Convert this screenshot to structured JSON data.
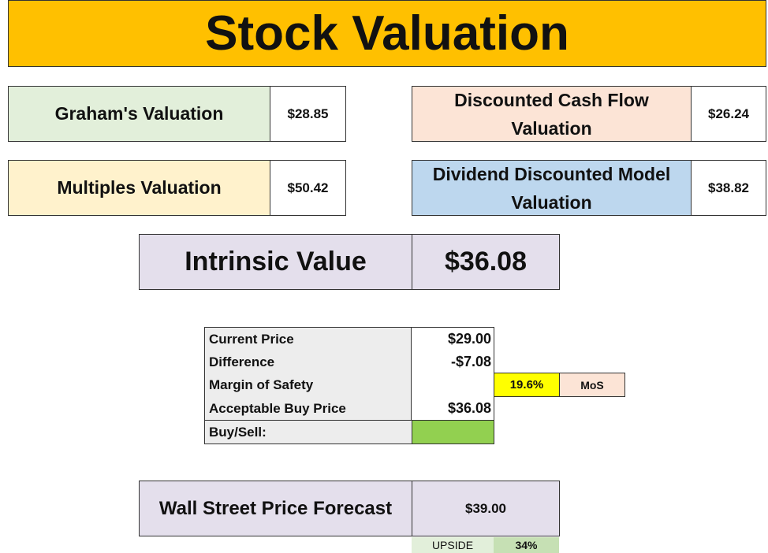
{
  "header": {
    "title": "Stock Valuation"
  },
  "valuations": [
    {
      "label": "Graham's Valuation",
      "value": "$28.85"
    },
    {
      "label": "Discounted Cash Flow Valuation",
      "value": "$26.24"
    },
    {
      "label": "Multiples Valuation",
      "value": "$50.42"
    },
    {
      "label": "Dividend Discounted Model Valuation",
      "value": "$38.82"
    }
  ],
  "intrinsic": {
    "label": "Intrinsic Value",
    "value": "$36.08"
  },
  "table": {
    "rows": [
      [
        "Current Price",
        "$29.00"
      ],
      [
        "Difference",
        "-$7.08"
      ],
      [
        "Margin of Safety",
        ""
      ],
      [
        "Acceptable Buy Price",
        "$36.08"
      ],
      [
        "Buy/Sell:",
        ""
      ]
    ]
  },
  "mos": {
    "value": "19.6%",
    "label": "MoS"
  },
  "forecast": {
    "label": "Wall Street Price Forecast",
    "value": "$39.00"
  },
  "upside": {
    "label": "UPSIDE",
    "value": "34%"
  }
}
